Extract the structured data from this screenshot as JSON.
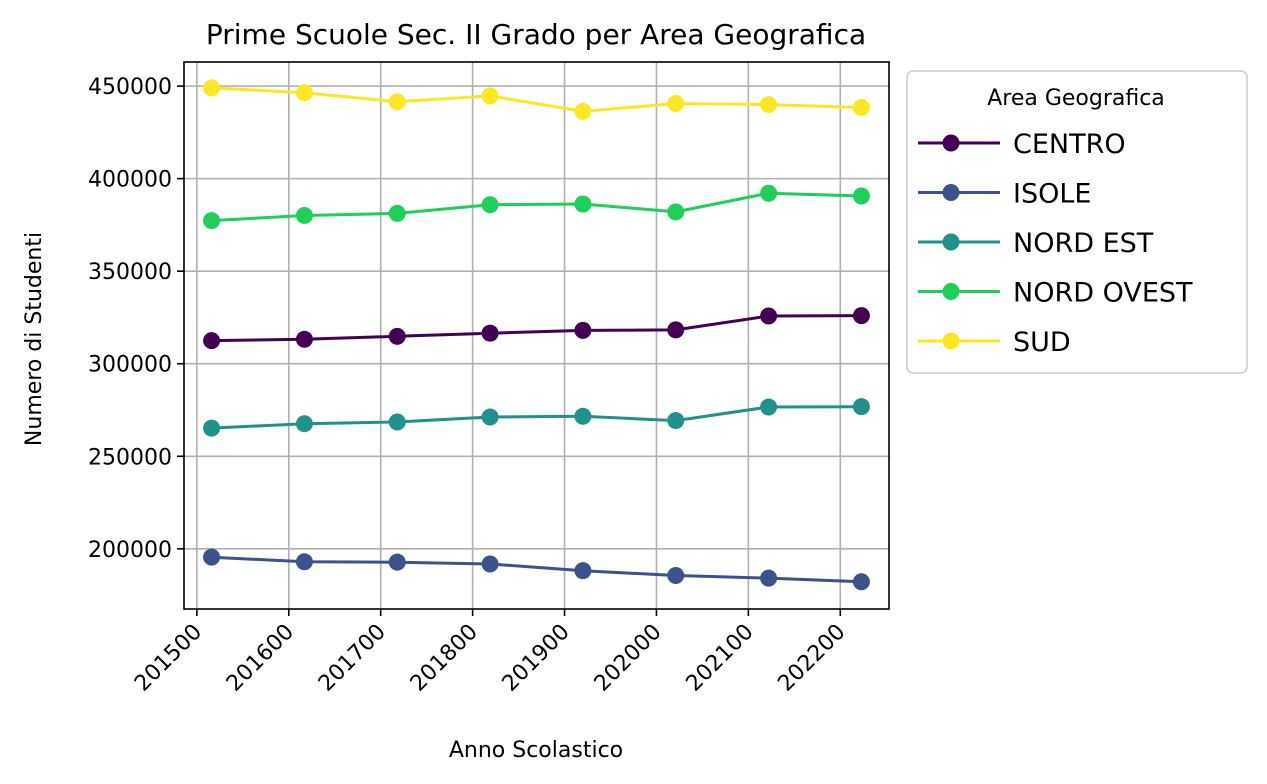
{
  "chart_data": {
    "type": "line",
    "title": "Prime Scuole Sec. II Grado per Area Geografica",
    "xlabel": "Anno Scolastico",
    "ylabel": "Numero di Studenti",
    "x": [
      201516,
      201617,
      201718,
      201819,
      201920,
      202021,
      202122,
      202223
    ],
    "x_ticks": [
      201500,
      201600,
      201700,
      201800,
      201900,
      202000,
      202100,
      202200
    ],
    "y_ticks": [
      200000,
      250000,
      300000,
      350000,
      400000,
      450000
    ],
    "xlim": [
      201486,
      202253
    ],
    "ylim": [
      167500,
      463000
    ],
    "grid": true,
    "legend_title": "Area Geografica",
    "legend_position": "outside upper right",
    "series": [
      {
        "name": "CENTRO",
        "color": "#440154",
        "values": [
          312500,
          313200,
          314800,
          316500,
          318000,
          318300,
          325800,
          326000
        ]
      },
      {
        "name": "ISOLE",
        "color": "#3b528b",
        "values": [
          195500,
          193000,
          192800,
          191800,
          188200,
          185600,
          184200,
          182200
        ]
      },
      {
        "name": "NORD EST",
        "color": "#21918c",
        "values": [
          265200,
          267600,
          268500,
          271200,
          271600,
          269300,
          276600,
          276800
        ]
      },
      {
        "name": "NORD OVEST",
        "color": "#1fcf59",
        "values": [
          377300,
          380100,
          381200,
          385900,
          386300,
          382000,
          392100,
          390600
        ]
      },
      {
        "name": "SUD",
        "color": "#fde725",
        "values": [
          449000,
          446400,
          441500,
          444700,
          436300,
          440600,
          440000,
          438400
        ]
      }
    ]
  }
}
